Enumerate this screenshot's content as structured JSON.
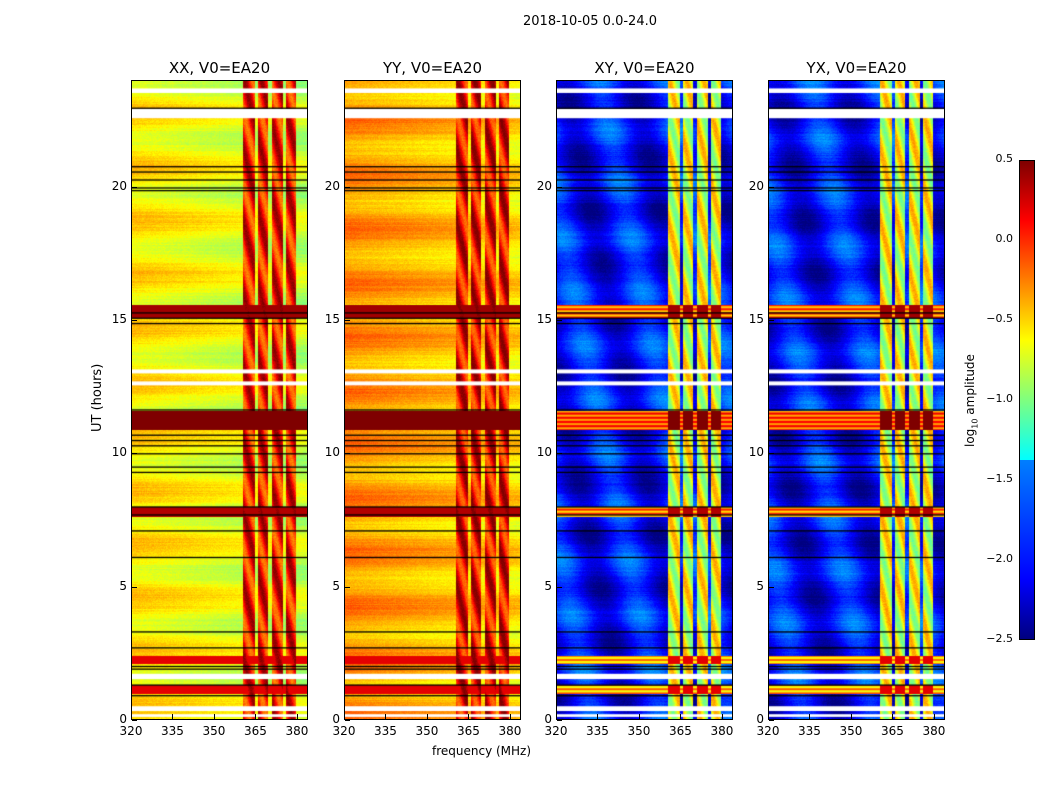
{
  "chart_data": {
    "type": "heatmap",
    "title": "2018-10-05 0.0-24.0",
    "xlabel": "frequency (MHz)",
    "ylabel": "UT (hours)",
    "xlim": [
      320,
      384
    ],
    "ylim": [
      0,
      24
    ],
    "xticks": [
      "320",
      "335",
      "350",
      "365",
      "380"
    ],
    "xtick_values": [
      320,
      335,
      350,
      365,
      380
    ],
    "yticks": [
      "0",
      "5",
      "10",
      "15",
      "20"
    ],
    "ytick_values": [
      0,
      5,
      10,
      15,
      20
    ],
    "colorbar": {
      "label_prefix": "log",
      "label_sub": "10",
      "label_suffix": " amplitude",
      "range": [
        -2.5,
        0.5
      ],
      "ticks": [
        "0.5",
        "0.0",
        "−0.5",
        "−1.0",
        "−1.5",
        "−2.0",
        "−2.5"
      ],
      "tick_values": [
        0.5,
        0.0,
        -0.5,
        -1.0,
        -1.5,
        -2.0,
        -2.5
      ],
      "colormap": "jet"
    },
    "panels": [
      {
        "title": "XX, V0=EA20",
        "base_level": -0.55,
        "band_level": 0.1
      },
      {
        "title": "YY, V0=EA20",
        "base_level": -0.3,
        "band_level": 0.15
      },
      {
        "title": "XY, V0=EA20",
        "base_level": -2.1,
        "band_level": -0.7
      },
      {
        "title": "YX, V0=EA20",
        "base_level": -2.1,
        "band_level": -0.7
      }
    ],
    "bright_channels_mhz": [
      [
        360.5,
        364.8
      ],
      [
        365.9,
        369.5
      ],
      [
        370.9,
        374.9
      ],
      [
        376,
        379.8
      ]
    ],
    "flagged_hours": [
      [
        23.55,
        23.72
      ],
      [
        22.6,
        22.95
      ],
      [
        13.0,
        13.15
      ],
      [
        12.55,
        12.7
      ],
      [
        1.5,
        1.7
      ],
      [
        0.3,
        0.48
      ],
      [
        0.08,
        0.18
      ]
    ],
    "gap_lines_hours": [
      23.0,
      20.8,
      20.6,
      20.3,
      20.0,
      19.9,
      15.3,
      15.1,
      14.9,
      11.65,
      10.7,
      10.5,
      10.3,
      10.0,
      9.5,
      9.3,
      8.0,
      7.7,
      7.1,
      6.1,
      3.3,
      2.7,
      2.0,
      1.9,
      1.3,
      0.9
    ],
    "rfi_hours": [
      {
        "range": [
          10.9,
          11.6
        ],
        "level": 0.5
      },
      {
        "range": [
          15.1,
          15.6
        ],
        "level": 0.4
      },
      {
        "range": [
          7.6,
          8.0
        ],
        "level": 0.35
      },
      {
        "range": [
          2.1,
          2.4
        ],
        "level": 0.2
      },
      {
        "range": [
          0.95,
          1.3
        ],
        "level": 0.2
      }
    ]
  }
}
